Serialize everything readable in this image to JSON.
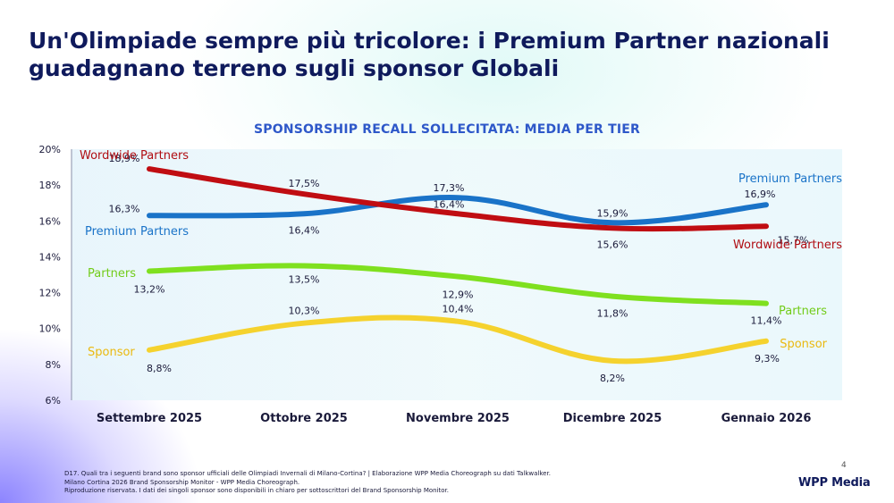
{
  "page": {
    "title_line1": "Un'Olimpiade sempre più tricolore: i Premium Partner nazionali",
    "title_line2": "guadagnano terreno sugli sponsor Globali",
    "page_number": "4",
    "logo": "WPP Media",
    "footnotes": [
      "D17. Quali tra i seguenti brand sono sponsor ufficiali delle Olimpiadi Invernali di Milano-Cortina? | Elaborazione WPP Media Choreograph su dati Talkwalker.",
      "Milano Cortina 2026 Brand Sponsorship Monitor - WPP Media Choreograph.",
      "Riproduzione riservata. I dati dei singoli sponsor sono disponibili in chiaro per sottoscrittori del Brand Sponsorship Monitor."
    ]
  },
  "chart_data": {
    "type": "line",
    "title": "SPONSORSHIP RECALL SOLLECITATA: MEDIA PER TIER",
    "categories": [
      "Settembre 2025",
      "Ottobre 2025",
      "Novembre 2025",
      "Dicembre 2025",
      "Gennaio 2026"
    ],
    "y_ticks": [
      "20%",
      "18%",
      "16%",
      "14%",
      "12%",
      "10%",
      "8%",
      "6%"
    ],
    "ylim": [
      6,
      20
    ],
    "series": [
      {
        "name": "Wordwide Partners",
        "color": "#c00d12",
        "values": [
          18.9,
          17.5,
          16.4,
          15.6,
          15.7
        ],
        "labels": [
          "18,9%",
          "17,5%",
          "16,4%",
          "15,6%",
          "15,7%"
        ],
        "start_label": "Wordwide Partners",
        "end_label": "Wordwide Partners"
      },
      {
        "name": "Premium Partners",
        "color": "#1a73c8",
        "values": [
          16.3,
          16.4,
          17.3,
          15.9,
          16.9
        ],
        "labels": [
          "16,3%",
          "16,4%",
          "17,3%",
          "15,9%",
          "16,9%"
        ],
        "start_label": "Premium Partners",
        "end_label": "Premium Partners"
      },
      {
        "name": "Partners",
        "color": "#7fe01f",
        "values": [
          13.2,
          13.5,
          12.9,
          11.8,
          11.4
        ],
        "labels": [
          "13,2%",
          "13,5%",
          "12,9%",
          "11,8%",
          "11,4%"
        ],
        "start_label": "Partners",
        "end_label": "Partners"
      },
      {
        "name": "Sponsor",
        "color": "#f5d22e",
        "values": [
          8.8,
          10.3,
          10.4,
          8.2,
          9.3
        ],
        "labels": [
          "8,8%",
          "10,3%",
          "10,4%",
          "8,2%",
          "9,3%"
        ],
        "start_label": "Sponsor",
        "end_label": "Sponsor"
      }
    ]
  }
}
